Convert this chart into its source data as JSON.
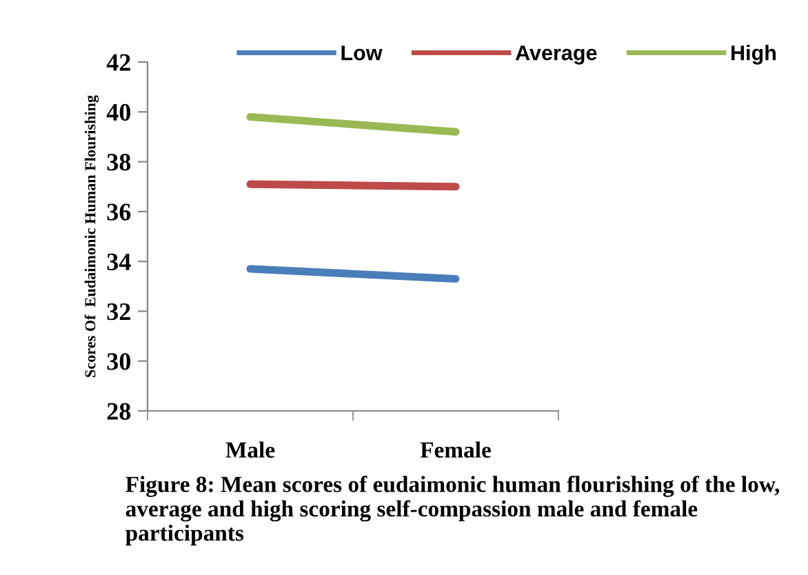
{
  "chart_data": {
    "type": "line",
    "ylabel": "Scores Of  Eudaimonic Human Flourishing",
    "categories": [
      "Male",
      "Female"
    ],
    "series": [
      {
        "name": "Low",
        "color": "#4a7ebb",
        "values": [
          33.7,
          33.3
        ]
      },
      {
        "name": "Average",
        "color": "#be4b48",
        "values": [
          37.1,
          37.0
        ]
      },
      {
        "name": "High",
        "color": "#98b954",
        "values": [
          39.8,
          39.2
        ]
      }
    ],
    "ylim": [
      28,
      42
    ],
    "yticks": [
      28,
      30,
      32,
      34,
      36,
      38,
      40,
      42
    ],
    "grid": false,
    "legend": "top right",
    "marker": "none",
    "line_style": "solid",
    "annotations": [
      "Figure 8: Mean scores of eudaimonic human flourishing of the low, average and high scoring self-compassion male and female participants"
    ]
  }
}
